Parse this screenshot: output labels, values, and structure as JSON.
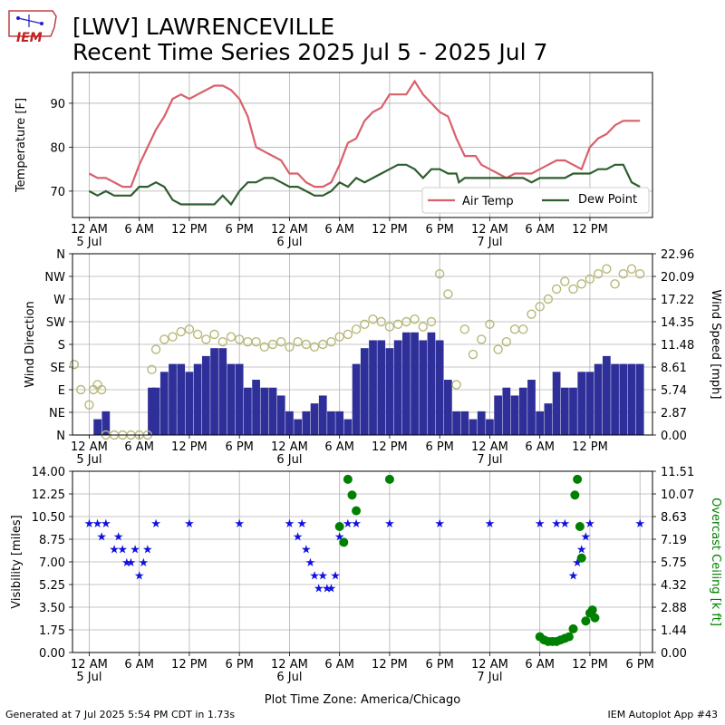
{
  "header": {
    "title_line1": "[LWV] LAWRENCEVILLE",
    "title_line2": "Recent Time Series 2025 Jul 5 - 2025 Jul 7",
    "logo_text": "IEM"
  },
  "footer": {
    "generated": "Generated at 7 Jul 2025 5:54 PM CDT in 1.73s",
    "app": "IEM Autoplot App #43"
  },
  "colors": {
    "air_temp": "#d9606a",
    "dew_point": "#2e5e2e",
    "wind_speed": "#2f2f9a",
    "wind_dir": "#b8b87a",
    "visibility": "#1010e0",
    "ceiling": "#008000",
    "grid": "#b0b0b0"
  },
  "x_axis": {
    "tick_hours": [
      0,
      6,
      12,
      18,
      24,
      30,
      36,
      42,
      48,
      54,
      60,
      66
    ],
    "tick_labels": [
      "12 AM",
      "6 AM",
      "12 PM",
      "6 PM",
      "12 AM",
      "6 AM",
      "12 PM",
      "6 PM",
      "12 AM",
      "6 AM",
      "12 PM",
      "6 PM"
    ],
    "date_labels": [
      {
        "hour": 0,
        "label": "5 Jul"
      },
      {
        "hour": 24,
        "label": "6 Jul"
      },
      {
        "hour": 48,
        "label": "7 Jul"
      }
    ],
    "xlabel": "Plot Time Zone: America/Chicago"
  },
  "chart_data": [
    {
      "type": "line",
      "ylabel": "Temperature [F]",
      "ylim": [
        64,
        97
      ],
      "yticks": [
        70,
        80,
        90
      ],
      "xlim_hours": [
        -2,
        67.5
      ],
      "grid": true,
      "legend_position": "bottom-right",
      "series": [
        {
          "name": "Air Temp",
          "x": [
            0,
            1,
            2,
            3,
            4,
            5,
            6,
            7,
            8,
            9,
            10,
            11,
            12,
            13,
            14,
            15,
            16,
            17,
            18,
            19,
            20,
            21,
            22,
            23,
            24,
            25,
            26,
            27,
            28,
            29,
            30,
            31,
            32,
            33,
            34,
            35,
            36,
            37,
            38,
            39,
            40,
            41,
            42,
            43,
            44,
            45,
            46,
            46.3,
            47,
            48,
            49,
            50,
            51,
            52,
            53,
            54,
            55,
            56,
            57,
            58,
            59,
            60,
            61,
            62,
            63,
            64,
            65,
            66
          ],
          "y": [
            74,
            73,
            73,
            72,
            71,
            71,
            76,
            80,
            84,
            87,
            91,
            92,
            91,
            92,
            93,
            94,
            94,
            93,
            91,
            87,
            80,
            79,
            78,
            77,
            74,
            74,
            72,
            71,
            71,
            72,
            76,
            81,
            82,
            86,
            88,
            89,
            92,
            92,
            92,
            95,
            92,
            90,
            88,
            87,
            82,
            78,
            78,
            78,
            76,
            75,
            74,
            73,
            74,
            74,
            74,
            75,
            76,
            77,
            77,
            76,
            75,
            80,
            82,
            83,
            85,
            86,
            86,
            86
          ]
        },
        {
          "name": "Dew Point",
          "x": [
            0,
            1,
            2,
            3,
            4,
            5,
            6,
            7,
            8,
            9,
            10,
            11,
            12,
            13,
            14,
            15,
            16,
            17,
            18,
            19,
            20,
            21,
            22,
            23,
            24,
            25,
            26,
            27,
            28,
            29,
            30,
            31,
            32,
            33,
            34,
            35,
            36,
            37,
            38,
            39,
            40,
            41,
            42,
            43,
            44,
            44.3,
            45,
            46,
            47,
            48,
            49,
            50,
            51,
            52,
            53,
            54,
            55,
            56,
            57,
            58,
            59,
            60,
            61,
            62,
            63,
            64,
            65,
            66
          ],
          "y": [
            70,
            69,
            70,
            69,
            69,
            69,
            71,
            71,
            72,
            71,
            68,
            67,
            67,
            67,
            67,
            67,
            69,
            67,
            70,
            72,
            72,
            73,
            73,
            72,
            71,
            71,
            70,
            69,
            69,
            70,
            72,
            71,
            73,
            72,
            73,
            74,
            75,
            76,
            76,
            75,
            73,
            75,
            75,
            74,
            74,
            72,
            73,
            73,
            73,
            73,
            73,
            73,
            73,
            73,
            72,
            73,
            73,
            73,
            73,
            74,
            74,
            74,
            75,
            75,
            76,
            76,
            72,
            71
          ]
        }
      ]
    },
    {
      "type": "bar+scatter",
      "ylabel": "Wind Direction",
      "y2label": "Wind Speed [mph]",
      "dir_ticks": [
        "N",
        "NE",
        "E",
        "SE",
        "S",
        "SW",
        "W",
        "NW",
        "N"
      ],
      "speed_ticks": [
        "0.00",
        "2.87",
        "5.74",
        "8.61",
        "11.48",
        "14.35",
        "17.22",
        "20.09",
        "22.96"
      ],
      "speed_lim": [
        0,
        22.96
      ],
      "series": [
        {
          "name": "Wind Speed",
          "x": [
            -1.5,
            0,
            1,
            2,
            3,
            4,
            5,
            6,
            7,
            7.5,
            8,
            9,
            10,
            11,
            12,
            13,
            14,
            15,
            16,
            17,
            18,
            19,
            20,
            21,
            22,
            23,
            24,
            25,
            26,
            27,
            28,
            29,
            30,
            31,
            32,
            33,
            34,
            35,
            36,
            37,
            38,
            39,
            40,
            41,
            42,
            43,
            44,
            45,
            46,
            47,
            48,
            49,
            50,
            51,
            52,
            53,
            54,
            55,
            56,
            57,
            58,
            59,
            60,
            61,
            62,
            63,
            64,
            65,
            66
          ],
          "values": [
            0,
            0,
            2,
            3,
            0,
            0,
            0,
            0,
            0,
            6,
            6,
            8,
            9,
            9,
            8,
            9,
            10,
            11,
            11,
            9,
            9,
            6,
            7,
            6,
            6,
            5,
            3,
            2,
            3,
            4,
            5,
            3,
            3,
            2,
            9,
            11,
            12,
            12,
            11,
            12,
            13,
            13,
            12,
            13,
            12,
            7,
            3,
            3,
            2,
            3,
            2,
            5,
            6,
            5,
            6,
            7,
            3,
            4,
            8,
            6,
            6,
            8,
            8,
            9,
            10,
            9,
            9,
            9,
            9
          ]
        },
        {
          "name": "Wind Direction (deg)",
          "x": [
            -1.8,
            -1,
            0,
            0.5,
            1,
            1.5,
            2,
            3,
            4,
            5,
            6,
            7,
            7.5,
            8,
            9,
            10,
            11,
            12,
            13,
            14,
            15,
            16,
            17,
            18,
            19,
            20,
            21,
            22,
            23,
            24,
            25,
            26,
            27,
            28,
            29,
            30,
            31,
            32,
            33,
            34,
            35,
            36,
            37,
            38,
            39,
            40,
            41,
            42,
            43,
            44,
            45,
            46,
            47,
            48,
            49,
            50,
            51,
            52,
            53,
            54,
            55,
            56,
            57,
            58,
            59,
            60,
            61,
            62,
            63,
            64,
            65,
            66
          ],
          "values": [
            140,
            90,
            60,
            90,
            100,
            90,
            0,
            0,
            0,
            0,
            0,
            0,
            130,
            170,
            190,
            195,
            205,
            210,
            200,
            190,
            200,
            185,
            195,
            190,
            185,
            185,
            175,
            180,
            185,
            175,
            185,
            180,
            175,
            180,
            185,
            195,
            200,
            210,
            220,
            230,
            225,
            215,
            220,
            225,
            230,
            215,
            225,
            320,
            280,
            100,
            210,
            160,
            190,
            220,
            170,
            185,
            210,
            210,
            240,
            255,
            270,
            290,
            305,
            290,
            300,
            310,
            320,
            330,
            300,
            320,
            330,
            320
          ]
        }
      ]
    },
    {
      "type": "scatter",
      "ylabel": "Visibility [miles]",
      "y2label": "Overcast Ceiling [k ft]",
      "vis_ticks": [
        "0.00",
        "1.75",
        "3.50",
        "5.25",
        "7.00",
        "8.75",
        "10.50",
        "12.25",
        "14.00"
      ],
      "ceil_ticks": [
        "0.00",
        "1.44",
        "2.88",
        "4.32",
        "5.75",
        "7.19",
        "8.63",
        "10.07",
        "11.51"
      ],
      "vis_lim": [
        0,
        14
      ],
      "ceil_lim": [
        0,
        11.51
      ],
      "series": [
        {
          "name": "Visibility",
          "x": [
            0,
            1,
            1.5,
            2,
            3,
            3.5,
            4,
            4.5,
            5,
            5.5,
            6,
            6.5,
            7,
            8,
            12,
            18,
            24,
            25,
            25.5,
            26,
            26.5,
            27,
            27.5,
            28,
            28.5,
            29,
            29.5,
            30,
            31,
            32,
            36,
            42,
            48,
            54,
            56,
            57,
            58,
            58.5,
            59,
            59.5,
            60,
            66
          ],
          "values": [
            10,
            10,
            9,
            10,
            8,
            9,
            8,
            7,
            7,
            8,
            6,
            7,
            8,
            10,
            10,
            10,
            10,
            9,
            10,
            8,
            7,
            6,
            5,
            6,
            5,
            5,
            6,
            9,
            10,
            10,
            10,
            10,
            10,
            10,
            10,
            10,
            6,
            7,
            8,
            9,
            10,
            10
          ]
        },
        {
          "name": "Overcast Ceiling",
          "x": [
            30,
            30.5,
            31,
            31.5,
            32,
            36,
            54,
            54.5,
            55,
            55.5,
            56,
            56.5,
            57,
            57.5,
            58,
            58.2,
            58.5,
            58.8,
            59,
            59.5,
            60,
            60.3,
            60.6
          ],
          "values": [
            8,
            7,
            11,
            10,
            9,
            11,
            1,
            0.8,
            0.7,
            0.7,
            0.7,
            0.8,
            0.9,
            1,
            1.5,
            10,
            11,
            8,
            6,
            2,
            2.5,
            2.7,
            2.2
          ]
        }
      ]
    }
  ]
}
